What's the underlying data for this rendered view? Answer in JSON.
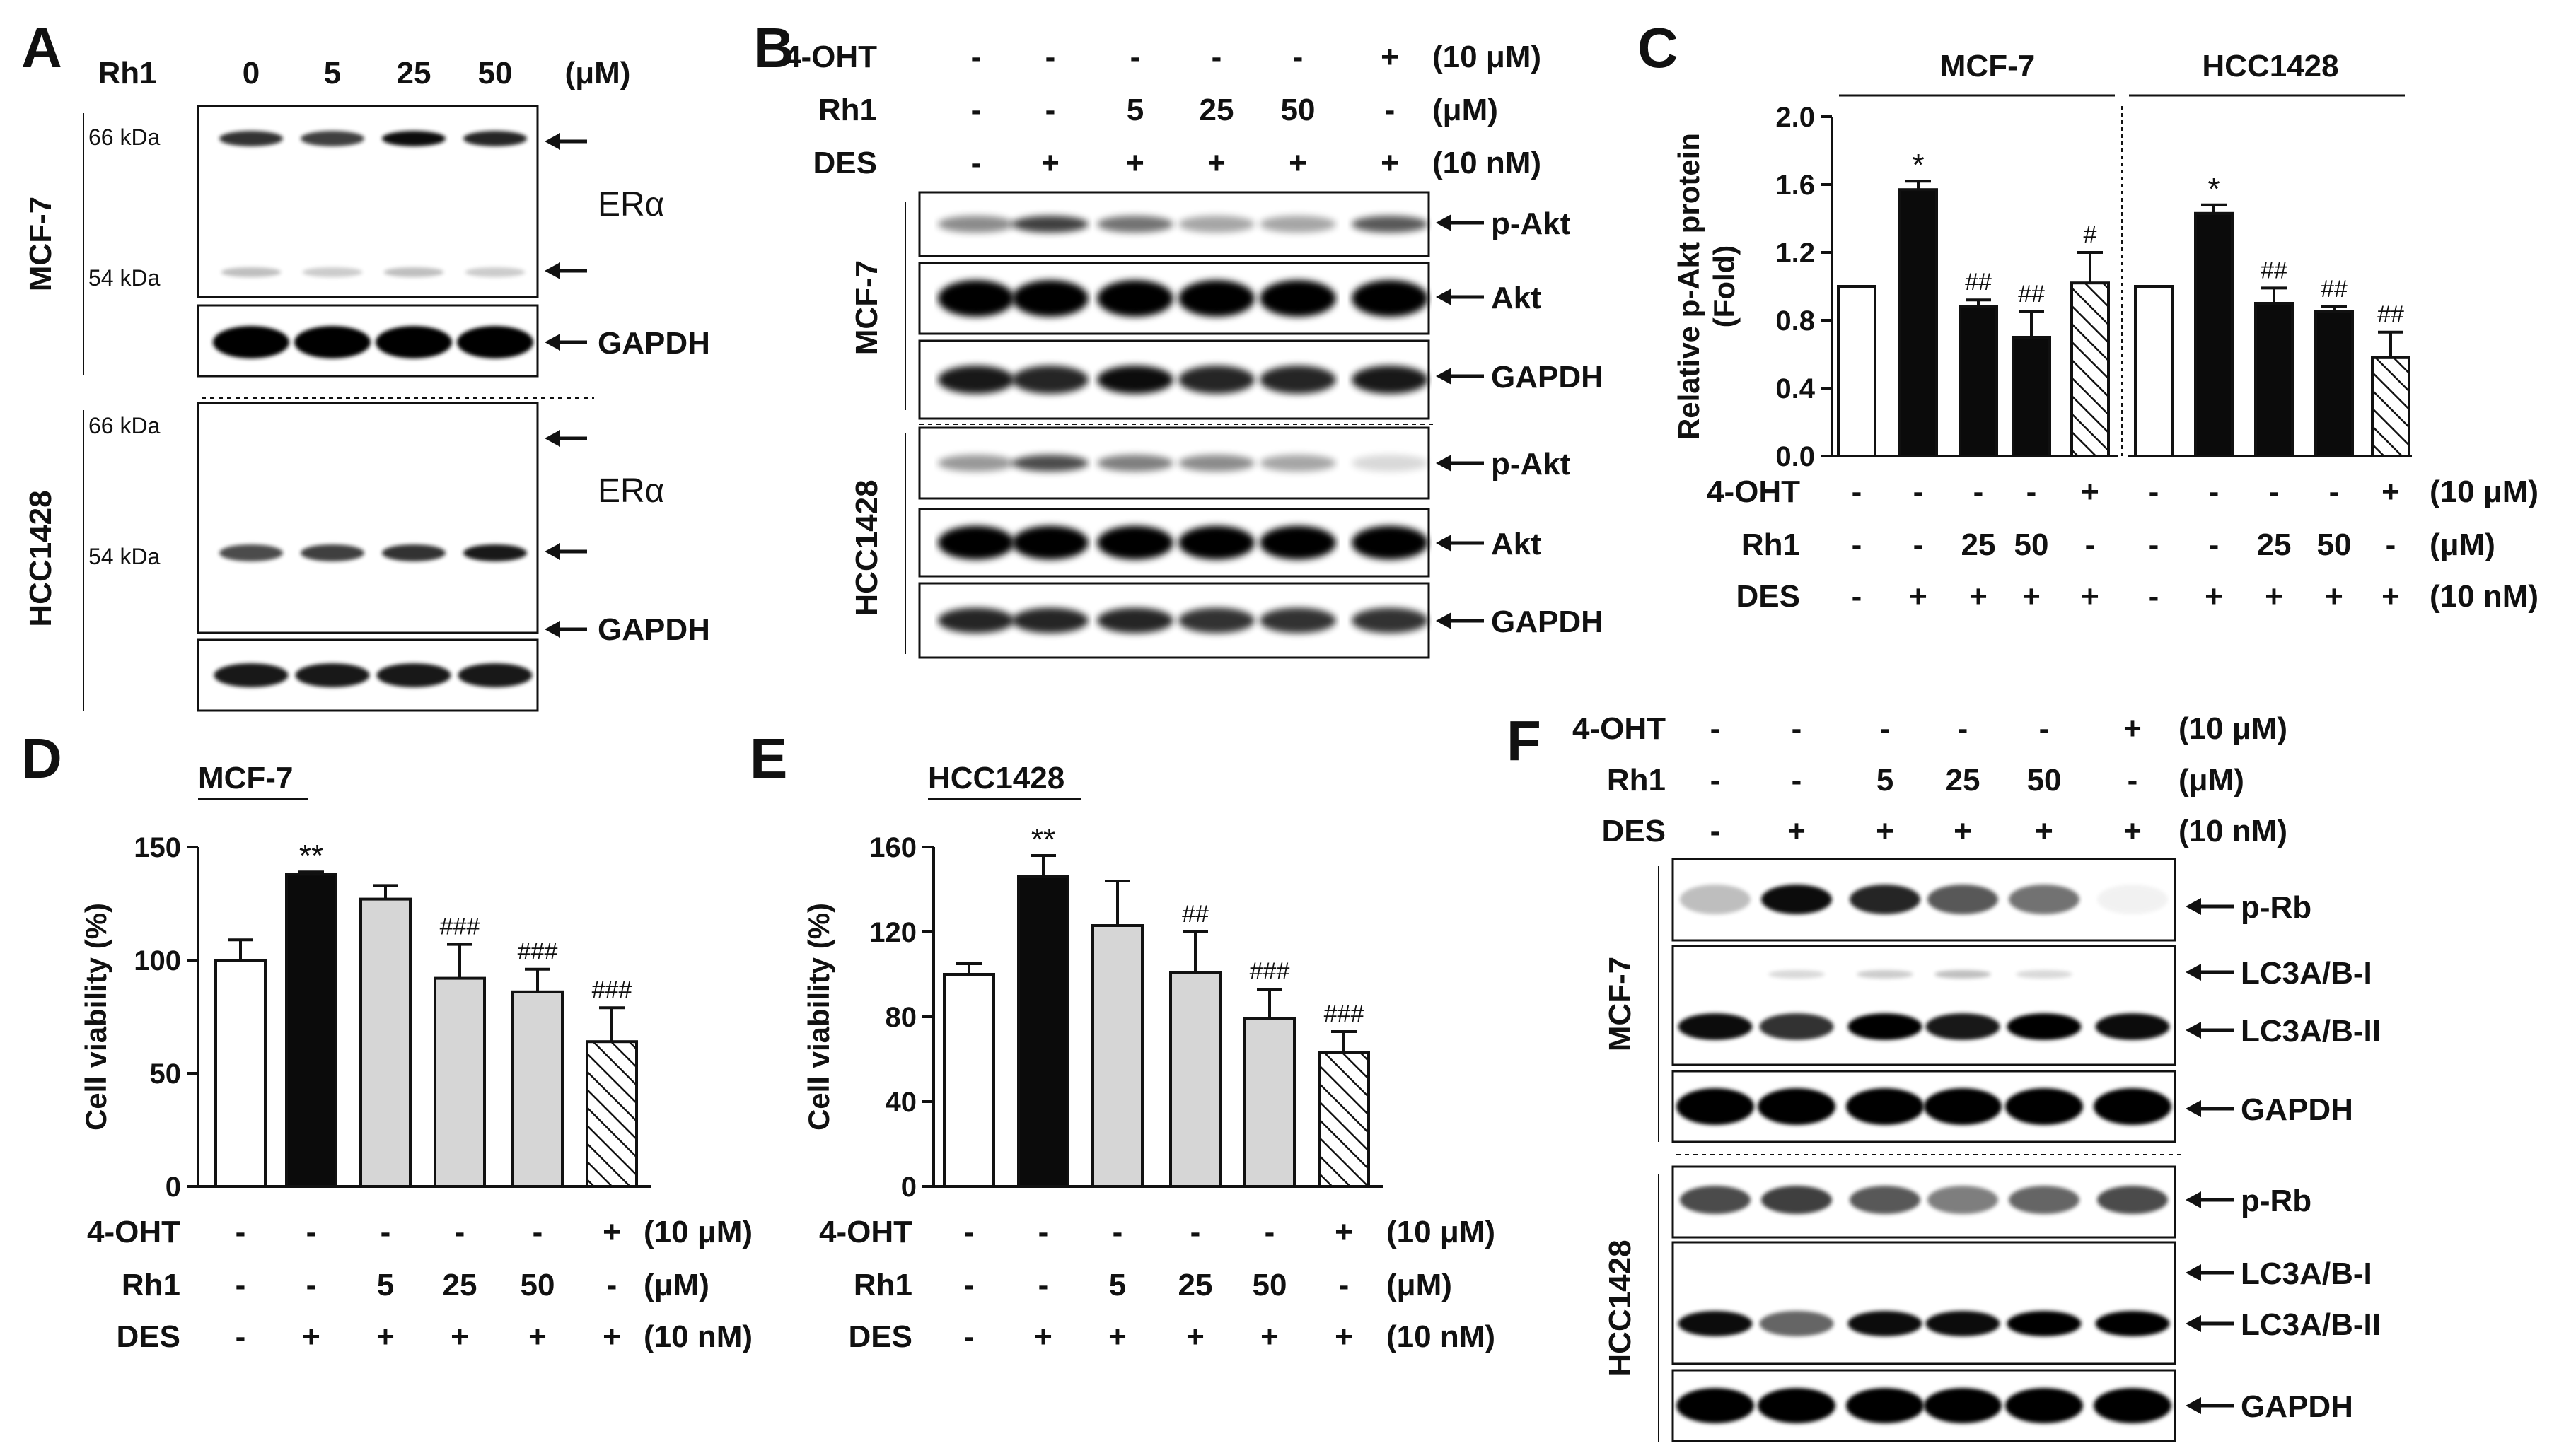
{
  "panel_letters": [
    "A",
    "B",
    "C",
    "D",
    "E",
    "F"
  ],
  "common": {
    "ohtLabel": "4-OHT",
    "rh1Label": "Rh1",
    "desLabel": "DES",
    "ohtUnit": "(10 μM)",
    "rh1Unit": "(μM)",
    "desUnit": "(10 nM)"
  },
  "panelA": {
    "rh1Label": "Rh1",
    "doses": [
      "0",
      "5",
      "25",
      "50"
    ],
    "unit": "(μM)",
    "cellLines": [
      "MCF-7",
      "HCC1428"
    ],
    "markers": {
      "kda66": "66 kDa",
      "kda54": "54 kDa"
    },
    "bandLabels": {
      "era": "ERα",
      "gapdh": "GAPDH"
    }
  },
  "panelB": {
    "oht": [
      "-",
      "-",
      "-",
      "-",
      "-",
      "+"
    ],
    "rh1": [
      "-",
      "-",
      "5",
      "25",
      "50",
      "-"
    ],
    "des": [
      "-",
      "+",
      "+",
      "+",
      "+",
      "+"
    ],
    "cellLines": [
      "MCF-7",
      "HCC1428"
    ],
    "bandLabels": [
      "p-Akt",
      "Akt",
      "GAPDH"
    ]
  },
  "panelF": {
    "oht": [
      "-",
      "-",
      "-",
      "-",
      "-",
      "+"
    ],
    "rh1": [
      "-",
      "-",
      "5",
      "25",
      "50",
      "-"
    ],
    "des": [
      "-",
      "+",
      "+",
      "+",
      "+",
      "+"
    ],
    "cellLines": [
      "MCF-7",
      "HCC1428"
    ],
    "bandLabels": [
      "p-Rb",
      "LC3A/B-I",
      "LC3A/B-II",
      "GAPDH"
    ]
  },
  "chart_data": [
    {
      "panel": "C",
      "type": "bar",
      "ylabel": "Relative p-Akt protein\n(Fold)",
      "ylim": [
        0,
        2.0
      ],
      "yticks": [
        "0.0",
        "0.4",
        "0.8",
        "1.2",
        "1.6",
        "2.0"
      ],
      "groups": [
        "MCF-7",
        "HCC1428"
      ],
      "series": [
        {
          "name": "MCF-7",
          "values": [
            1.0,
            1.57,
            0.88,
            0.7,
            1.02
          ],
          "errors": [
            0,
            0.05,
            0.04,
            0.15,
            0.18
          ],
          "annotations": [
            "",
            "*",
            "##",
            "##",
            "#"
          ]
        },
        {
          "name": "HCC1428",
          "values": [
            1.0,
            1.43,
            0.9,
            0.85,
            0.58
          ],
          "errors": [
            0,
            0.05,
            0.09,
            0.03,
            0.15
          ],
          "annotations": [
            "",
            "*",
            "##",
            "##",
            "##"
          ]
        }
      ],
      "fills": [
        "white",
        "black",
        "black",
        "black",
        "hatch"
      ],
      "oht": [
        "-",
        "-",
        "-",
        "-",
        "+"
      ],
      "rh1": [
        "-",
        "-",
        "25",
        "50",
        "-"
      ],
      "des": [
        "-",
        "+",
        "+",
        "+",
        "+"
      ]
    },
    {
      "panel": "D",
      "type": "bar",
      "title": "MCF-7",
      "ylabel": "Cell viability (%)",
      "ylim": [
        0,
        150
      ],
      "yticks": [
        "0",
        "50",
        "100",
        "150"
      ],
      "values": [
        100,
        138,
        127,
        92,
        86,
        64
      ],
      "errors": [
        9,
        1,
        6,
        15,
        10,
        15
      ],
      "annotations": [
        "",
        "**",
        "",
        "###",
        "###",
        "###"
      ],
      "fills": [
        "white",
        "black",
        "gray",
        "gray",
        "gray",
        "hatch"
      ],
      "oht": [
        "-",
        "-",
        "-",
        "-",
        "-",
        "+"
      ],
      "rh1": [
        "-",
        "-",
        "5",
        "25",
        "50",
        "-"
      ],
      "des": [
        "-",
        "+",
        "+",
        "+",
        "+",
        "+"
      ]
    },
    {
      "panel": "E",
      "type": "bar",
      "title": "HCC1428",
      "ylabel": "Cell viability (%)",
      "ylim": [
        0,
        160
      ],
      "yticks": [
        "0",
        "40",
        "80",
        "120",
        "160"
      ],
      "values": [
        100,
        146,
        123,
        101,
        79,
        63
      ],
      "errors": [
        5,
        10,
        21,
        19,
        14,
        10
      ],
      "annotations": [
        "",
        "**",
        "",
        "##",
        "###",
        "###"
      ],
      "fills": [
        "white",
        "black",
        "gray",
        "gray",
        "gray",
        "hatch"
      ],
      "oht": [
        "-",
        "-",
        "-",
        "-",
        "-",
        "+"
      ],
      "rh1": [
        "-",
        "-",
        "5",
        "25",
        "50",
        "-"
      ],
      "des": [
        "-",
        "+",
        "+",
        "+",
        "+",
        "+"
      ]
    }
  ]
}
